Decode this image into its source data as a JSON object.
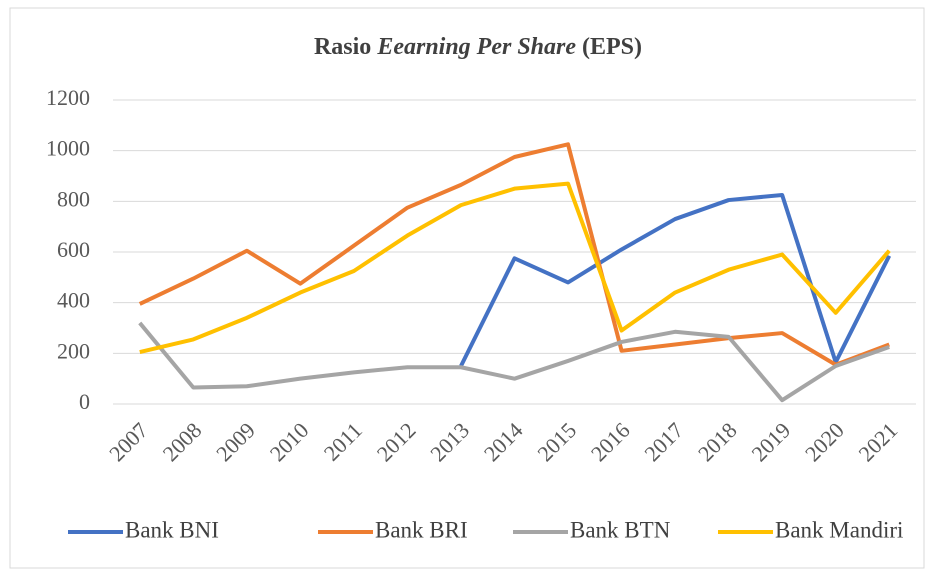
{
  "chart_data": {
    "type": "line",
    "title_parts": [
      "Rasio",
      "Eearning Per Share",
      "(EPS)"
    ],
    "categories": [
      "2007",
      "2008",
      "2009",
      "2010",
      "2011",
      "2012",
      "2013",
      "2014",
      "2015",
      "2016",
      "2017",
      "2018",
      "2019",
      "2020",
      "2021"
    ],
    "series": [
      {
        "name": "Bank BNI",
        "color": "#4472c4",
        "values": [
          null,
          null,
          null,
          null,
          null,
          null,
          150,
          575,
          480,
          610,
          730,
          805,
          825,
          165,
          585
        ]
      },
      {
        "name": "Bank BRI",
        "color": "#ed7d31",
        "values": [
          395,
          495,
          605,
          475,
          625,
          775,
          865,
          975,
          1025,
          210,
          235,
          260,
          280,
          155,
          235
        ]
      },
      {
        "name": "Bank BTN",
        "color": "#a5a5a5",
        "values": [
          320,
          65,
          70,
          100,
          125,
          145,
          145,
          100,
          170,
          245,
          285,
          265,
          15,
          150,
          225
        ]
      },
      {
        "name": "Bank Mandiri",
        "color": "#ffc000",
        "values": [
          205,
          255,
          340,
          440,
          525,
          665,
          785,
          850,
          870,
          290,
          440,
          530,
          590,
          360,
          605
        ]
      }
    ],
    "ylim": [
      0,
      1200
    ],
    "yticks": [
      0,
      200,
      400,
      600,
      800,
      1000,
      1200
    ],
    "grid": true,
    "legend": "bottom"
  }
}
